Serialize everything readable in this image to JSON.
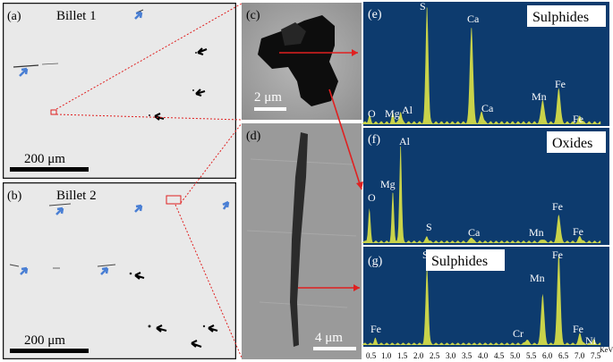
{
  "panels": {
    "a": {
      "label": "(a)",
      "title": "Billet 1",
      "scale": "200 μm"
    },
    "b": {
      "label": "(b)",
      "title": "Billet 2",
      "scale": "200 μm"
    },
    "c": {
      "label": "(c)",
      "scale": "2 μm"
    },
    "d": {
      "label": "(d)",
      "scale": "4 μm"
    },
    "e": {
      "label": "(e)",
      "title": "Sulphides",
      "peaks": [
        "O",
        "Mg",
        "Al",
        "S",
        "Ca",
        "Ca",
        "Mn",
        "Fe",
        "Fe"
      ]
    },
    "f": {
      "label": "(f)",
      "title": "Oxides",
      "peaks": [
        "O",
        "Mg",
        "Al",
        "S",
        "Ca",
        "Mn",
        "Fe",
        "Fe"
      ]
    },
    "g": {
      "label": "(g)",
      "title": "Sulphides",
      "peaks": [
        "Fe",
        "S",
        "Cr",
        "Mn",
        "Fe",
        "Fe",
        "Ni"
      ]
    }
  },
  "x_axis": {
    "ticks": [
      "0.5",
      "1.0",
      "1.5",
      "2.0",
      "2.5",
      "3.0",
      "3.5",
      "4.0",
      "4.5",
      "5.0",
      "5.5",
      "6.0",
      "6.5",
      "7.0",
      "7.5"
    ],
    "unit": "KeV"
  },
  "colors": {
    "spectrum_bg": "#0d3b6e",
    "peak": "#c9d34a",
    "arrow_red": "#e02020",
    "arrow_blue": "#4a7fd4"
  }
}
